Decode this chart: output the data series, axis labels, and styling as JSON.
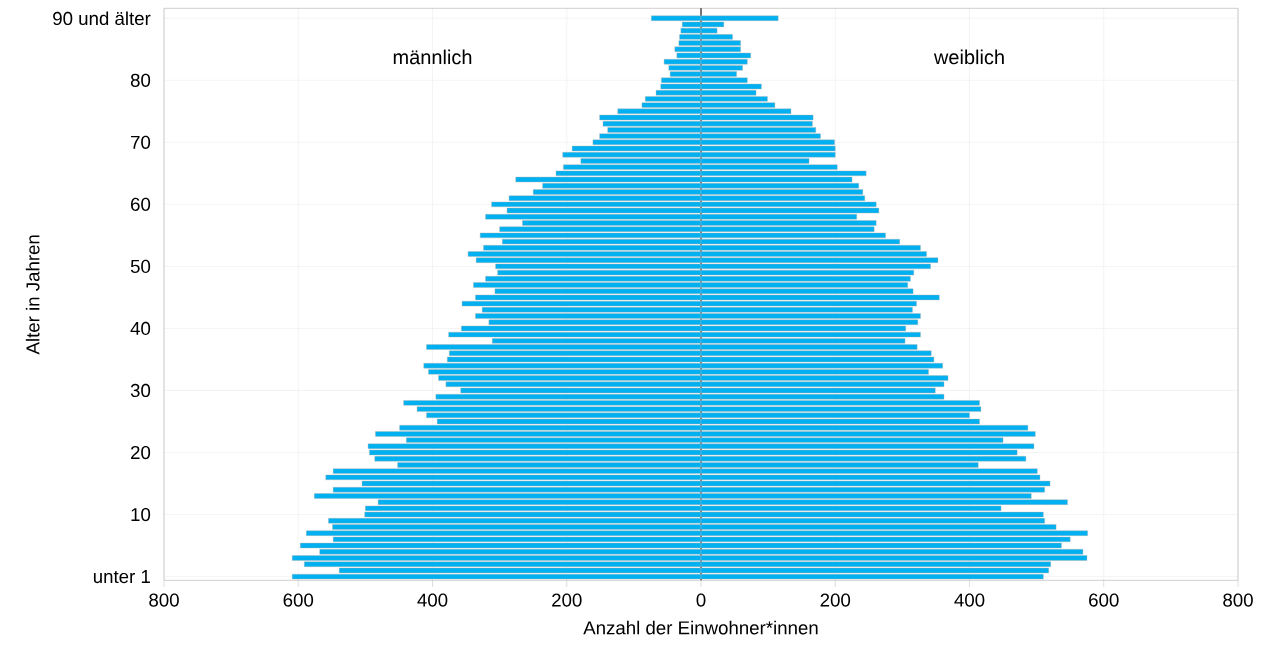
{
  "chart_data": {
    "type": "bar",
    "orientation": "horizontal",
    "categories": [
      "90 und älter",
      null,
      null,
      null,
      null,
      null,
      null,
      null,
      null,
      null,
      "80",
      null,
      null,
      null,
      null,
      null,
      null,
      null,
      null,
      null,
      "70",
      null,
      null,
      null,
      null,
      null,
      null,
      null,
      null,
      null,
      "60",
      null,
      null,
      null,
      null,
      null,
      null,
      null,
      null,
      null,
      "50",
      null,
      null,
      null,
      null,
      null,
      null,
      null,
      null,
      null,
      "40",
      null,
      null,
      null,
      null,
      null,
      null,
      null,
      null,
      null,
      "30",
      null,
      null,
      null,
      null,
      null,
      null,
      null,
      null,
      null,
      "20",
      null,
      null,
      null,
      null,
      null,
      null,
      null,
      null,
      null,
      "10",
      null,
      null,
      null,
      null,
      null,
      null,
      null,
      null,
      null,
      "unter 1"
    ],
    "series": [
      {
        "color": "#00b0f0",
        "values": [
          -74,
          -28,
          -30,
          -32,
          -33,
          -39,
          -36,
          -55,
          -48,
          -46,
          -59,
          -60,
          -67,
          -83,
          -88,
          -124,
          -151,
          -146,
          -139,
          -151,
          -161,
          -192,
          -206,
          -179,
          -205,
          -216,
          -276,
          -236,
          -250,
          -286,
          -312,
          -289,
          -321,
          -266,
          -300,
          -329,
          -296,
          -324,
          -347,
          -335,
          -306,
          -303,
          -321,
          -339,
          -307,
          -336,
          -356,
          -326,
          -336,
          -316,
          -357,
          -376,
          -311,
          -409,
          -375,
          -378,
          -413,
          -406,
          -391,
          -380,
          -358,
          -395,
          -443,
          -423,
          -409,
          -393,
          -449,
          -485,
          -439,
          -496,
          -494,
          -486,
          -452,
          -548,
          -559,
          -505,
          -548,
          -576,
          -481,
          -500,
          -501,
          -555,
          -549,
          -588,
          -548,
          -597,
          -568,
          -609,
          -591,
          -539,
          -609
        ]
      },
      {
        "color": "#00b0f0",
        "values": [
          115,
          34,
          24,
          47,
          59,
          59,
          74,
          69,
          62,
          53,
          69,
          90,
          82,
          99,
          110,
          134,
          167,
          166,
          171,
          178,
          199,
          200,
          200,
          161,
          203,
          246,
          225,
          235,
          241,
          244,
          261,
          265,
          232,
          261,
          258,
          275,
          296,
          327,
          336,
          353,
          342,
          317,
          312,
          308,
          316,
          355,
          321,
          315,
          327,
          323,
          305,
          327,
          304,
          322,
          343,
          347,
          360,
          339,
          368,
          362,
          349,
          362,
          415,
          417,
          400,
          415,
          487,
          498,
          450,
          496,
          471,
          484,
          413,
          501,
          505,
          520,
          512,
          492,
          546,
          447,
          510,
          512,
          529,
          576,
          550,
          537,
          569,
          575,
          521,
          518,
          510
        ]
      }
    ],
    "xlim": [
      -800,
      800
    ],
    "xticks": [
      {
        "value": -800,
        "label": "800"
      },
      {
        "value": -600,
        "label": "600"
      },
      {
        "value": -400,
        "label": "400"
      },
      {
        "value": -200,
        "label": "200"
      },
      0,
      200,
      400,
      600,
      800
    ],
    "xlabel": "Anzahl der Einwohner*innen",
    "ylabel": "Alter in Jahren",
    "annotations": [
      "männlich",
      "weiblich"
    ],
    "grid": true,
    "stacked": true
  }
}
